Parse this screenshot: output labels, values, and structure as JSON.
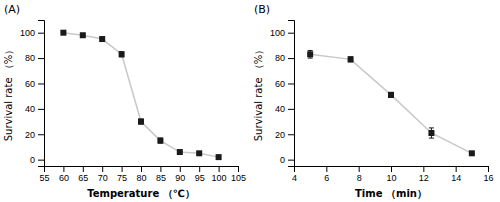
{
  "chart_data": [
    {
      "type": "line",
      "annotations": [
        "(A)"
      ],
      "xlabel": "Temperature （℃）",
      "ylabel": "Survival rate （%）",
      "x": [
        60,
        65,
        70,
        75,
        80,
        85,
        90,
        95,
        100
      ],
      "values": [
        100,
        98,
        95,
        83,
        30,
        15,
        6,
        5,
        2
      ],
      "yerr": [
        1,
        1,
        1,
        2,
        2,
        2,
        1,
        1,
        1
      ],
      "color": "#1a1a1a",
      "marker": "square",
      "xlim": [
        55,
        105
      ],
      "ylim": [
        -5,
        110
      ],
      "xticks": [
        55,
        60,
        65,
        70,
        75,
        80,
        85,
        90,
        95,
        100,
        105
      ],
      "yticks": [
        0,
        20,
        40,
        60,
        80,
        100
      ]
    },
    {
      "type": "line",
      "annotations": [
        "(B)"
      ],
      "xlabel": "Time （min）",
      "ylabel": "Survival rate （%）",
      "x": [
        5,
        7.5,
        10,
        12.5,
        15
      ],
      "values": [
        83,
        79,
        51,
        21,
        5
      ],
      "yerr": [
        3,
        2,
        2,
        4,
        1
      ],
      "color": "#1a1a1a",
      "marker": "square",
      "xlim": [
        4,
        16
      ],
      "ylim": [
        -5,
        110
      ],
      "xticks": [
        4,
        6,
        8,
        10,
        12,
        14,
        16
      ],
      "yticks": [
        0,
        20,
        40,
        60,
        80,
        100
      ]
    }
  ]
}
